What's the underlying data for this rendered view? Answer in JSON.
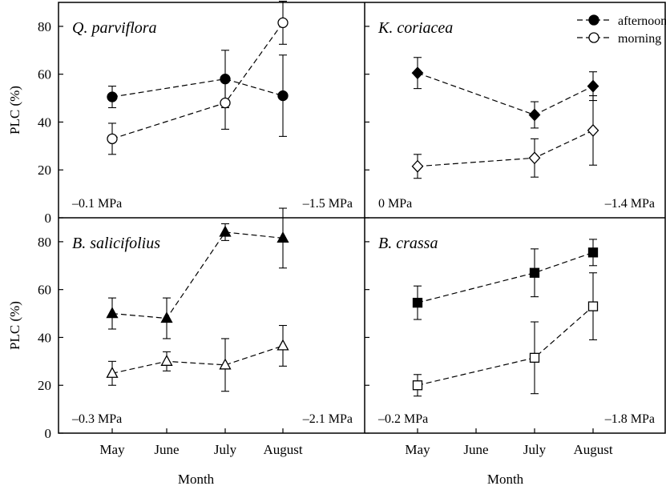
{
  "chart_data": {
    "type": "line",
    "xlabel": "Month",
    "ylabel": "PLC (%)",
    "categories": [
      "May",
      "June",
      "July",
      "August"
    ],
    "ylim": [
      0,
      90
    ],
    "yticks": [
      0,
      20,
      40,
      60,
      80
    ],
    "grid": false,
    "legend": {
      "placement": "top-right",
      "entries": [
        {
          "label": "afternoon",
          "marker": "filled-circle"
        },
        {
          "label": "morning",
          "marker": "open-circle"
        }
      ]
    },
    "panels": [
      {
        "title": "Q. parviflora",
        "marker": "circle",
        "annotations": {
          "left": "–0.1 MPa",
          "right": "–1.5 MPa"
        },
        "series": [
          {
            "name": "afternoon",
            "filled": true,
            "points": [
              {
                "x": "May",
                "y": 50.5,
                "err": 4.5
              },
              {
                "x": "July",
                "y": 58,
                "err": 12
              },
              {
                "x": "August",
                "y": 51,
                "err": 17
              }
            ]
          },
          {
            "name": "morning",
            "filled": false,
            "points": [
              {
                "x": "May",
                "y": 33,
                "err": 6.5
              },
              {
                "x": "July",
                "y": 48,
                "err": 11
              },
              {
                "x": "August",
                "y": 81.5,
                "err": 9
              }
            ]
          }
        ]
      },
      {
        "title": "K. coriacea",
        "marker": "diamond",
        "annotations": {
          "left": "0 MPa",
          "right": "–1.4 MPa"
        },
        "series": [
          {
            "name": "afternoon",
            "filled": true,
            "points": [
              {
                "x": "May",
                "y": 60.5,
                "err": 6.5
              },
              {
                "x": "July",
                "y": 43,
                "err": 5.5
              },
              {
                "x": "August",
                "y": 55,
                "err": 6
              }
            ]
          },
          {
            "name": "morning",
            "filled": false,
            "points": [
              {
                "x": "May",
                "y": 21.5,
                "err": 5
              },
              {
                "x": "July",
                "y": 25,
                "err": 8
              },
              {
                "x": "August",
                "y": 36.5,
                "err": 14.5
              }
            ]
          }
        ]
      },
      {
        "title": "B. salicifolius",
        "marker": "triangle",
        "annotations": {
          "left": "–0.3 MPa",
          "right": "–2.1 MPa"
        },
        "series": [
          {
            "name": "afternoon",
            "filled": true,
            "points": [
              {
                "x": "May",
                "y": 50,
                "err": 6.5
              },
              {
                "x": "June",
                "y": 48,
                "err": 8.5
              },
              {
                "x": "July",
                "y": 84,
                "err": 3.5
              },
              {
                "x": "August",
                "y": 81.5,
                "err": 12.5
              }
            ]
          },
          {
            "name": "morning",
            "filled": false,
            "points": [
              {
                "x": "May",
                "y": 25,
                "err": 5
              },
              {
                "x": "June",
                "y": 30,
                "err": 4
              },
              {
                "x": "July",
                "y": 28.5,
                "err": 11
              },
              {
                "x": "August",
                "y": 36.5,
                "err": 8.5
              }
            ]
          }
        ]
      },
      {
        "title": "B. crassa",
        "marker": "square",
        "annotations": {
          "left": "–0.2 MPa",
          "right": "–1.8 MPa"
        },
        "series": [
          {
            "name": "afternoon",
            "filled": true,
            "points": [
              {
                "x": "May",
                "y": 54.5,
                "err": 7
              },
              {
                "x": "July",
                "y": 67,
                "err": 10
              },
              {
                "x": "August",
                "y": 75.5,
                "err": 5.5
              }
            ]
          },
          {
            "name": "morning",
            "filled": false,
            "points": [
              {
                "x": "May",
                "y": 20,
                "err": 4.5
              },
              {
                "x": "July",
                "y": 31.5,
                "err": 15
              },
              {
                "x": "August",
                "y": 53,
                "err": 14
              }
            ]
          }
        ]
      }
    ]
  }
}
